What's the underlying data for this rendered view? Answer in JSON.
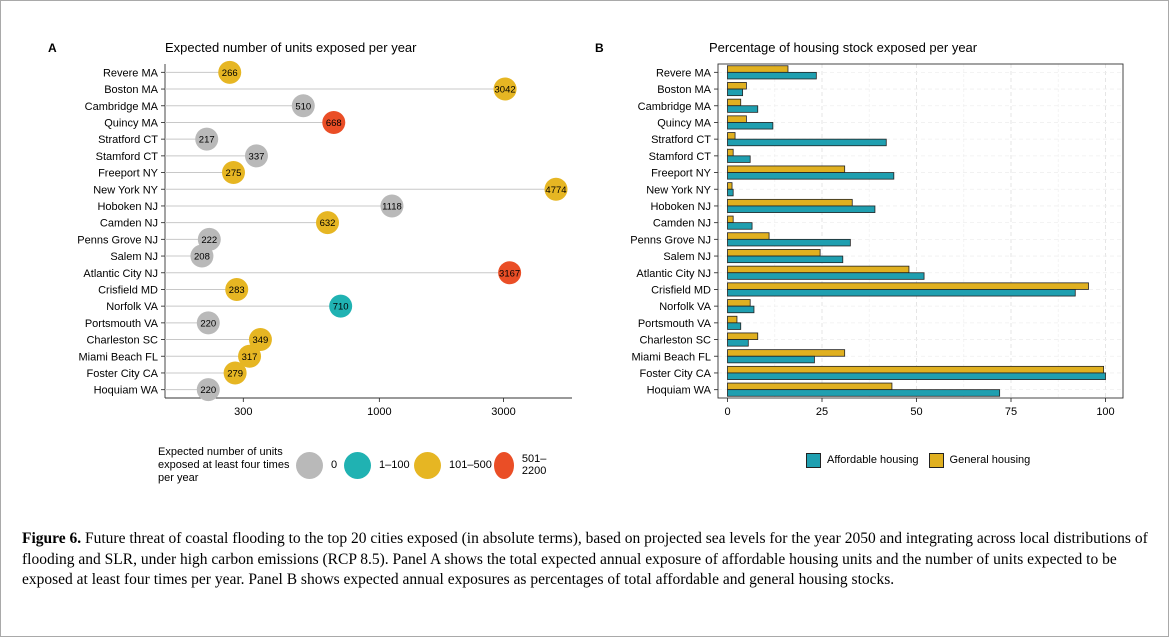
{
  "caption": {
    "label": "Figure 6.",
    "text": "Future threat of coastal flooding to the top 20 cities exposed (in absolute terms), based on projected sea levels for the year 2050 and integrating across local distributions of flooding and SLR, under high carbon emissions (RCP 8.5). Panel A shows the total expected annual exposure of affordable housing units and the number of units expected to be exposed at least four times per year. Panel B shows expected annual exposures as percentages of total affordable and general housing stocks."
  },
  "colors": {
    "grey": "#b9b9b9",
    "teal": "#20b2b2",
    "gold": "#e6b623",
    "red": "#ea4e26",
    "affordable": "#1f9fb0",
    "general": "#e0b020",
    "grid": "#e5e5e5",
    "axis": "#333333"
  },
  "chart_data": [
    {
      "type": "scatter",
      "panel_letter": "A",
      "title": "Expected number of units exposed per year",
      "xlabel": "",
      "ylabel": "",
      "x_scale": "log",
      "xlim": [
        150,
        5500
      ],
      "x_ticks": [
        300,
        1000,
        3000
      ],
      "x_tick_labels": [
        "300",
        "1000",
        "3000"
      ],
      "categories": [
        "Revere MA",
        "Boston MA",
        "Cambridge MA",
        "Quincy MA",
        "Stratford CT",
        "Stamford CT",
        "Freeport NY",
        "New York NY",
        "Hoboken NJ",
        "Camden NJ",
        "Penns Grove NJ",
        "Salem NJ",
        "Atlantic City NJ",
        "Crisfield MD",
        "Norfolk VA",
        "Portsmouth VA",
        "Charleston SC",
        "Miami Beach FL",
        "Foster City CA",
        "Hoquiam WA"
      ],
      "values": [
        266,
        3042,
        510,
        668,
        217,
        337,
        275,
        4774,
        1118,
        632,
        222,
        208,
        3167,
        283,
        710,
        220,
        349,
        317,
        279,
        220
      ],
      "groups": [
        "101–500",
        "101–500",
        "0",
        "501–2200",
        "0",
        "0",
        "101–500",
        "101–500",
        "0",
        "101–500",
        "0",
        "0",
        "501–2200",
        "101–500",
        "1–100",
        "0",
        "101–500",
        "101–500",
        "101–500",
        "0"
      ],
      "legend": {
        "title": "Expected number of units exposed at least four times per year",
        "items": [
          {
            "label": "0",
            "color": "#b9b9b9"
          },
          {
            "label": "1–100",
            "color": "#20b2b2"
          },
          {
            "label": "101–500",
            "color": "#e6b623"
          },
          {
            "label": "501–2200",
            "color": "#ea4e26"
          }
        ],
        "placement": "bottom"
      },
      "grid": false
    },
    {
      "type": "bar",
      "orientation": "horizontal",
      "panel_letter": "B",
      "title": "Percentage of housing stock exposed per year",
      "xlabel": "",
      "ylabel": "",
      "xlim": [
        0,
        100
      ],
      "x_ticks": [
        0,
        25,
        50,
        75,
        100
      ],
      "categories": [
        "Revere MA",
        "Boston MA",
        "Cambridge MA",
        "Quincy MA",
        "Stratford CT",
        "Stamford CT",
        "Freeport NY",
        "New York NY",
        "Hoboken NJ",
        "Camden NJ",
        "Penns Grove NJ",
        "Salem NJ",
        "Atlantic City NJ",
        "Crisfield MD",
        "Norfolk VA",
        "Portsmouth VA",
        "Charleston SC",
        "Miami Beach FL",
        "Foster City CA",
        "Hoquiam WA"
      ],
      "series": [
        {
          "name": "General housing",
          "color": "#e0b020",
          "values": [
            16,
            5,
            3.5,
            5,
            2,
            1.5,
            31,
            1.2,
            33,
            1.5,
            11,
            24.5,
            48,
            95.5,
            6,
            2.5,
            8,
            31,
            99.5,
            43.5
          ]
        },
        {
          "name": "Affordable housing",
          "color": "#1f9fb0",
          "values": [
            23.5,
            4,
            8,
            12,
            42,
            6,
            44,
            1.5,
            39,
            6.5,
            32.5,
            30.5,
            52,
            92,
            7,
            3.5,
            5.5,
            23,
            100,
            72
          ]
        }
      ],
      "legend": {
        "items": [
          {
            "label": "Affordable housing",
            "color": "#1f9fb0"
          },
          {
            "label": "General housing",
            "color": "#e0b020"
          }
        ],
        "placement": "bottom"
      },
      "grid": true
    }
  ]
}
